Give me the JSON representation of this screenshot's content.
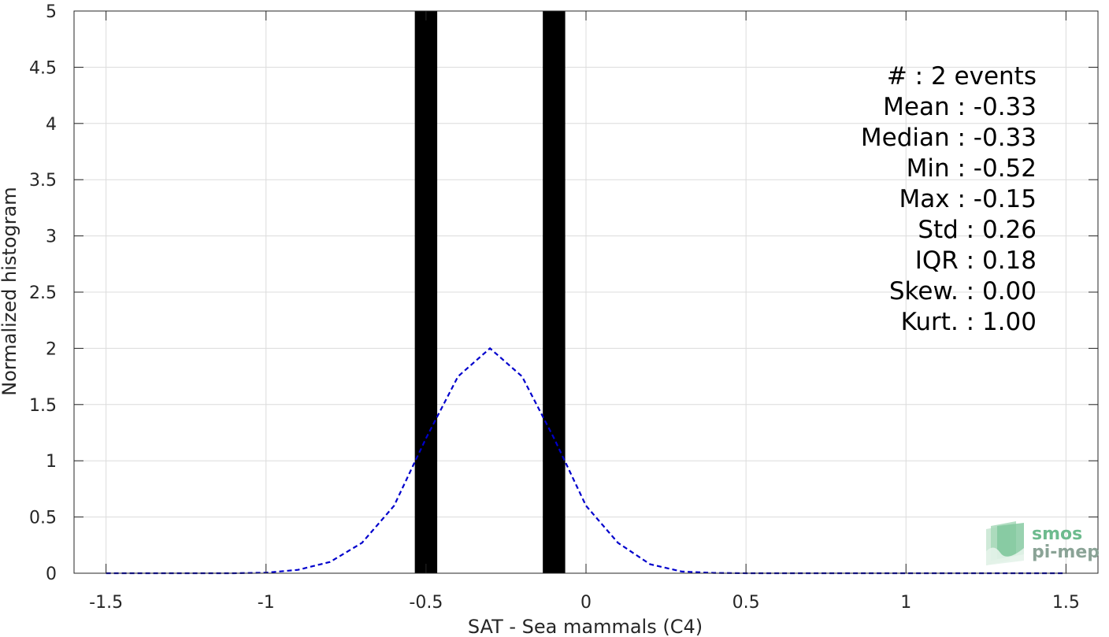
{
  "chart_data": {
    "type": "bar",
    "xlabel": "SAT - Sea mammals (C4)",
    "ylabel": "Normalized histogram",
    "xlim": [
      -1.6,
      1.6
    ],
    "ylim": [
      0,
      5
    ],
    "xticks": [
      -1.5,
      -1,
      -0.5,
      0,
      0.5,
      1,
      1.5
    ],
    "xtick_labels": [
      "-1.5",
      "-1",
      "-0.5",
      "0",
      "0.5",
      "1",
      "1.5"
    ],
    "yticks": [
      0,
      0.5,
      1,
      1.5,
      2,
      2.5,
      3,
      3.5,
      4,
      4.5,
      5
    ],
    "ytick_labels": [
      "0",
      "0.5",
      "1",
      "1.5",
      "2",
      "2.5",
      "3",
      "3.5",
      "4",
      "4.5",
      "5"
    ],
    "grid": true,
    "bar_color": "#000000",
    "bars": [
      {
        "x": -0.5,
        "width": 0.07,
        "value": 5
      },
      {
        "x": -0.1,
        "width": 0.07,
        "value": 5
      }
    ],
    "fit_curve": {
      "style": "dashed",
      "color": "#0000cc",
      "x": [
        -1.5,
        -1.4,
        -1.3,
        -1.2,
        -1.1,
        -1.0,
        -0.9,
        -0.8,
        -0.7,
        -0.6,
        -0.5,
        -0.4,
        -0.3,
        -0.2,
        -0.1,
        0.0,
        0.1,
        0.2,
        0.3,
        0.4,
        0.5,
        0.6,
        0.7,
        0.8,
        0.9,
        1.0,
        1.1,
        1.2,
        1.3,
        1.4,
        1.5
      ],
      "y": [
        0,
        0,
        0,
        0,
        0,
        0.005,
        0.03,
        0.1,
        0.27,
        0.6,
        1.2,
        1.75,
        2.0,
        1.75,
        1.2,
        0.6,
        0.27,
        0.08,
        0.015,
        0.003,
        0,
        0,
        0,
        0,
        0,
        0,
        0,
        0,
        0,
        0,
        0
      ]
    },
    "annotations": [
      "#  : 2 events",
      "Mean : -0.33",
      "Median : -0.33",
      "Min : -0.52",
      "Max : -0.15",
      "Std : 0.26",
      "IQR : 0.18",
      "Skew. : 0.00",
      "Kurt. : 1.00"
    ]
  },
  "logo": {
    "line1": "smos",
    "line2": "pi-mep",
    "color": "#6dbb8e"
  }
}
